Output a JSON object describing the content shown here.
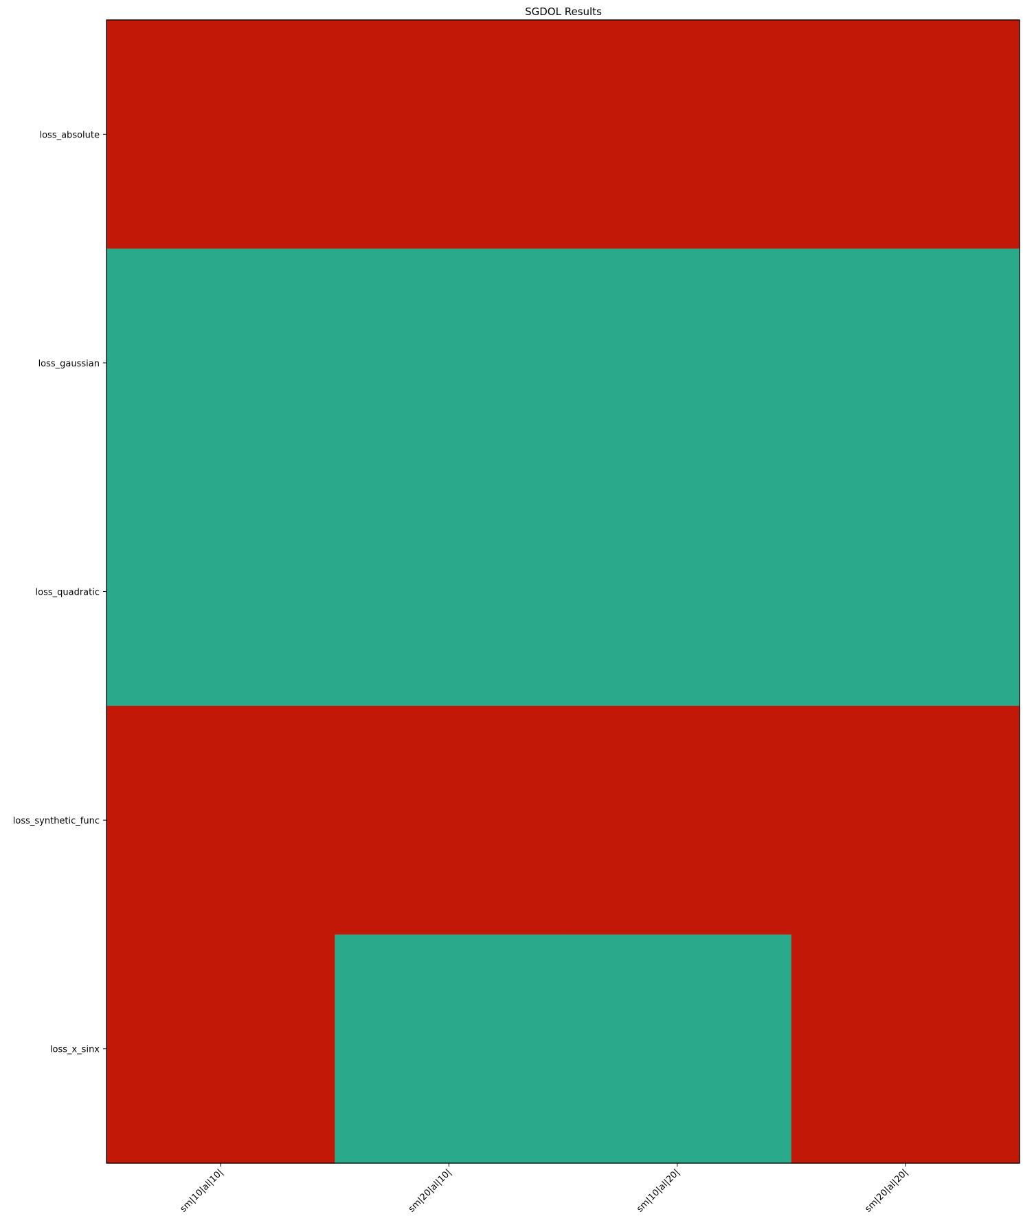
{
  "chart_data": {
    "type": "heatmap",
    "title": "SGDOL Results",
    "xlabel": "",
    "ylabel": "",
    "columns": [
      "sm|10|al|10|",
      "sm|20|al|10|",
      "sm|10|al|20|",
      "sm|20|al|20|"
    ],
    "rows": [
      "loss_absolute",
      "loss_gaussian",
      "loss_quadratic",
      "loss_synthetic_func",
      "loss_x_sinx"
    ],
    "values": [
      [
        0,
        0,
        0,
        0
      ],
      [
        1,
        1,
        1,
        1
      ],
      [
        1,
        1,
        1,
        1
      ],
      [
        0,
        0,
        0,
        0
      ],
      [
        0,
        1,
        1,
        0
      ]
    ],
    "colors": {
      "0": "#c21807",
      "1": "#2aaa8a"
    },
    "grid": false,
    "legend": "none"
  }
}
